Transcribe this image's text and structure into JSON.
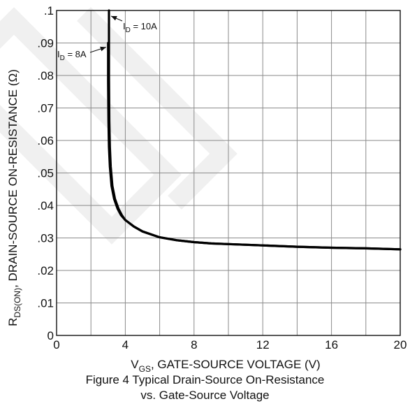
{
  "chart_data": {
    "type": "line",
    "title": "Figure 4 Typical Drain-Source On-Resistance",
    "subtitle": "vs. Gate-Source Voltage",
    "xlabel": {
      "main": "V",
      "sub": "GS",
      "rest": ", GATE-SOURCE VOLTAGE (V)"
    },
    "ylabel": {
      "main": "R",
      "sub": "DS(ON)",
      "rest": ",  DRAIN-SOURCE ON-RESISTANCE (Ω)"
    },
    "xlim": [
      0,
      20
    ],
    "ylim": [
      0,
      0.1
    ],
    "x_ticks": [
      0,
      4,
      8,
      12,
      16,
      20
    ],
    "x_tick_labels": [
      "0",
      "4",
      "8",
      "12",
      "16",
      "20"
    ],
    "y_ticks": [
      0,
      0.01,
      0.02,
      0.03,
      0.04,
      0.05,
      0.06,
      0.07,
      0.08,
      0.09,
      0.1
    ],
    "y_tick_labels": [
      "0",
      ".01",
      ".02",
      ".03",
      ".04",
      ".05",
      ".06",
      ".07",
      ".08",
      ".09",
      ".1"
    ],
    "x_grid_step": 2,
    "y_grid_step": 0.01,
    "grid": true,
    "series": [
      {
        "name": "I_D = 10A",
        "color": "#000000",
        "x": [
          3.05,
          3.05,
          3.07,
          3.1,
          3.15,
          3.25,
          3.4,
          3.6,
          3.8,
          4.0,
          4.5,
          5.0,
          6.0,
          7.0,
          8.0,
          9.0,
          10.0,
          12.0,
          14.0,
          16.0,
          18.0,
          20.0
        ],
        "y": [
          0.1,
          0.08,
          0.066,
          0.058,
          0.052,
          0.046,
          0.042,
          0.039,
          0.037,
          0.0355,
          0.0335,
          0.032,
          0.0302,
          0.0293,
          0.0287,
          0.0283,
          0.0281,
          0.0277,
          0.0273,
          0.027,
          0.0268,
          0.0265
        ]
      },
      {
        "name": "I_D = 8A",
        "color": "#000000",
        "x": [
          3.0,
          3.0,
          3.02,
          3.05,
          3.1,
          3.2,
          3.35,
          3.55,
          3.75,
          4.0,
          4.5,
          5.0,
          6.0,
          7.0,
          8.0,
          9.0,
          10.0,
          12.0,
          14.0,
          16.0,
          18.0,
          20.0
        ],
        "y": [
          0.09,
          0.078,
          0.066,
          0.058,
          0.052,
          0.046,
          0.042,
          0.039,
          0.037,
          0.0355,
          0.0335,
          0.032,
          0.0302,
          0.0293,
          0.0287,
          0.0283,
          0.0281,
          0.0277,
          0.0273,
          0.027,
          0.0268,
          0.0265
        ]
      }
    ],
    "annotations": [
      {
        "main": "I",
        "sub": "D",
        "rest": " = 10A",
        "points_to": [
          3.05,
          0.1
        ]
      },
      {
        "main": "I",
        "sub": "D",
        "rest": " = 8A",
        "points_to": [
          3.0,
          0.09
        ]
      }
    ]
  }
}
